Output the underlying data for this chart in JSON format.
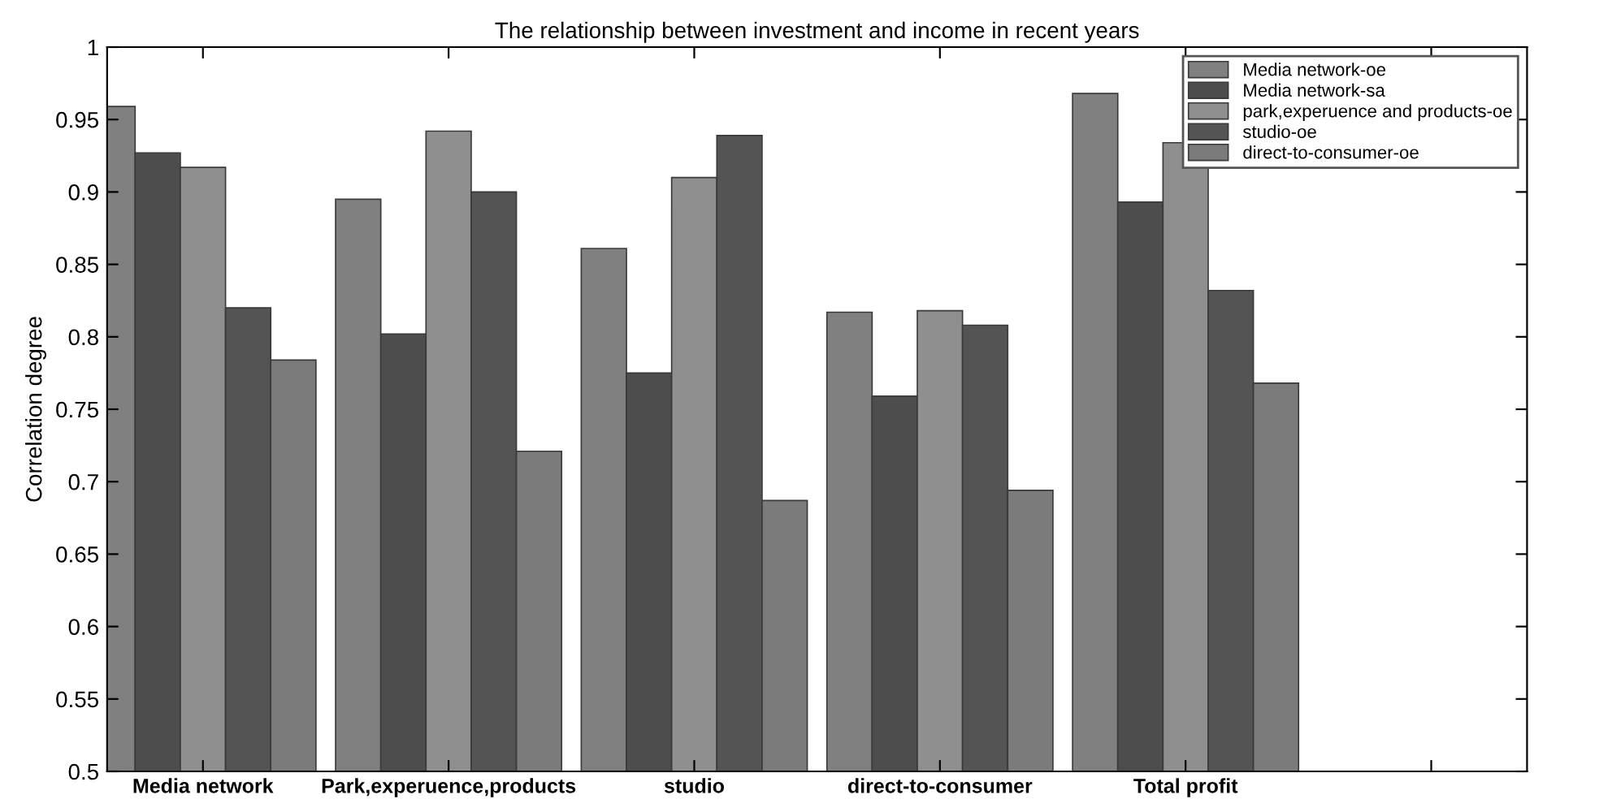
{
  "chart_data": {
    "type": "bar",
    "title": "The relationship between investment and income in recent years",
    "ylabel": "Correlation degree",
    "categories": [
      "Media network",
      "Park,experuence,products",
      "studio",
      "direct-to-consumer",
      "Total profit",
      null
    ],
    "series": [
      {
        "name": "Media network-oe",
        "color": "#808080",
        "values": [
          0.959,
          0.895,
          0.861,
          0.817,
          0.968,
          null
        ]
      },
      {
        "name": "Media network-sa",
        "color": "#4d4d4d",
        "values": [
          0.927,
          0.802,
          0.775,
          0.759,
          0.893,
          null
        ]
      },
      {
        "name": "park,experuence and products-oe",
        "color": "#8f8f8f",
        "values": [
          0.917,
          0.942,
          0.91,
          0.818,
          0.934,
          null
        ]
      },
      {
        "name": "studio-oe",
        "color": "#545454",
        "values": [
          0.82,
          0.9,
          0.939,
          0.808,
          0.832,
          null
        ]
      },
      {
        "name": "direct-to-consumer-oe",
        "color": "#7b7b7b",
        "values": [
          0.784,
          0.721,
          0.687,
          0.694,
          0.768,
          null
        ]
      }
    ],
    "ylim": [
      0.5,
      1
    ],
    "yticks": [
      0.5,
      0.55,
      0.6,
      0.65,
      0.7,
      0.75,
      0.8,
      0.85,
      0.9,
      0.95,
      1
    ],
    "grid": false,
    "legend": "top right"
  }
}
